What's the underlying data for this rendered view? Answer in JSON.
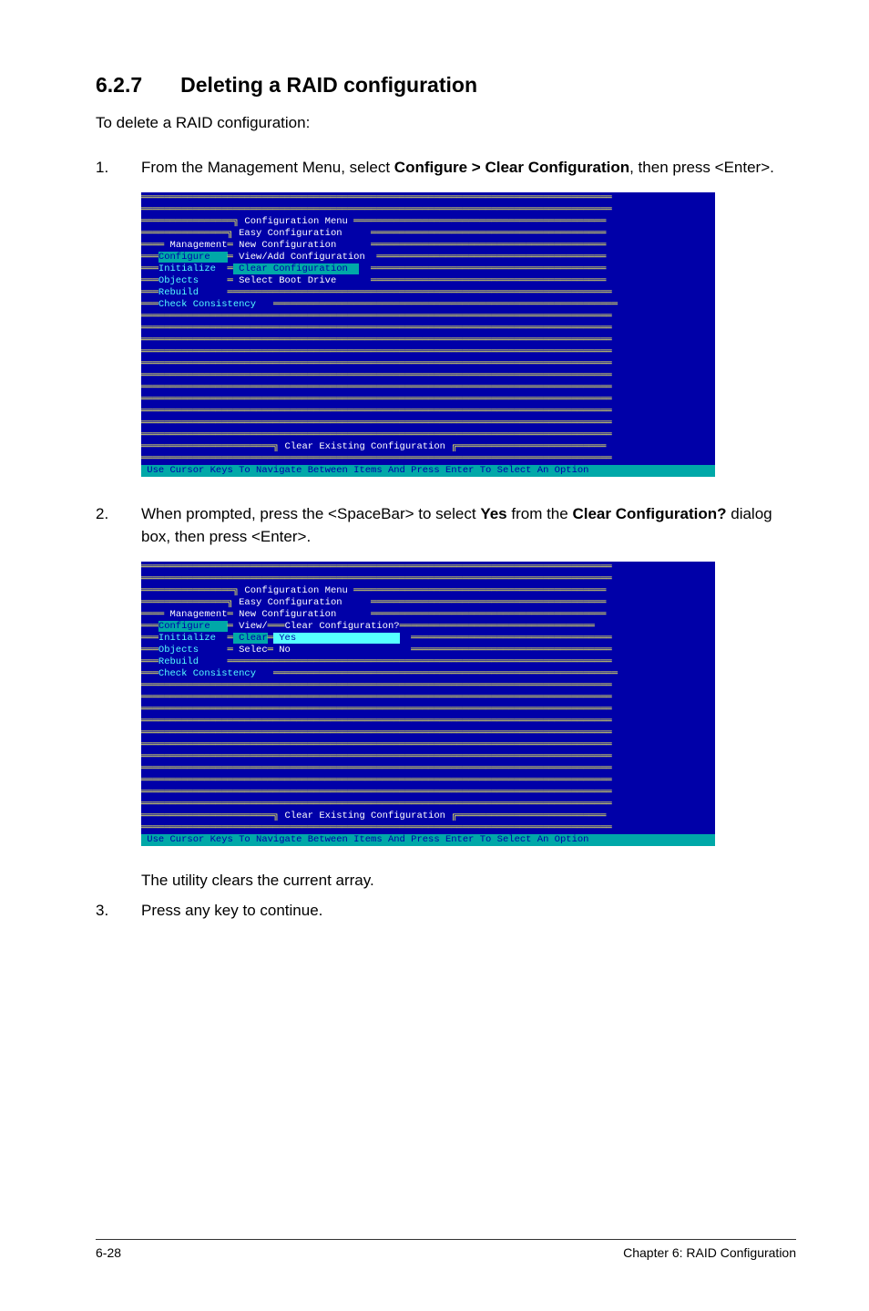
{
  "section": {
    "number": "6.2.7",
    "title": "Deleting a RAID configuration",
    "intro": "To delete a RAID configuration:"
  },
  "steps": {
    "s1": {
      "num": "1.",
      "pre": "From the Management Menu, select ",
      "bold1": "Configure > Clear Configuration",
      "post1": ", then press <Enter>."
    },
    "s2": {
      "num": "2.",
      "pre": "When prompted, press the <SpaceBar> to select ",
      "bold1": "Yes",
      "mid": " from the ",
      "bold2": "Clear Configuration?",
      "post": " dialog box, then press <Enter>."
    },
    "after": "The utility clears the current array.",
    "s3": {
      "num": "3.",
      "text": "Press any key to continue."
    }
  },
  "bios1": {
    "title": " Configuration Menu ",
    "m1": " Easy Configuration   ",
    "m2": " New Configuration    ",
    "m3": " View/Add Configuration ",
    "m4": " Clear Configuration  ",
    "m5": " Select Boot Drive    ",
    "mgmt": " Management",
    "side1": "Configure   ",
    "side2": "Initialize ",
    "side3": "Objects    ",
    "side4": "Rebuild    ",
    "side5": "Check Consistency  ",
    "banner": " Clear Existing Configuration ",
    "status": " Use Cursor Keys To Navigate Between Items And Press Enter To Select An Option "
  },
  "bios2": {
    "title": " Configuration Menu ",
    "m1": " Easy Configuration   ",
    "m2": " New Configuration    ",
    "m3prefix": " View/",
    "dlgtitle": "Clear Configuration?",
    "m4": " Clear",
    "yes": " Yes                  ",
    "m5": " Selec",
    "no": " No",
    "mgmt": " Management",
    "side1": "Configure   ",
    "side2": "Initialize ",
    "side3": "Objects    ",
    "side4": "Rebuild    ",
    "side5": "Check Consistency  ",
    "banner": " Clear Existing Configuration ",
    "status": " Use Cursor Keys To Navigate Between Items And Press Enter To Select An Option "
  },
  "footer": {
    "left": "6-28",
    "right": "Chapter 6: RAID Configuration"
  },
  "colors": {
    "bios_bg": "#0000a8",
    "yellow": "#ffff55",
    "white": "#ffffff",
    "cyan": "#55ffff",
    "hl_bg": "#00a8a8",
    "hl_fg": "#0000a8",
    "page_bg": "#ffffff",
    "text": "#000000"
  }
}
